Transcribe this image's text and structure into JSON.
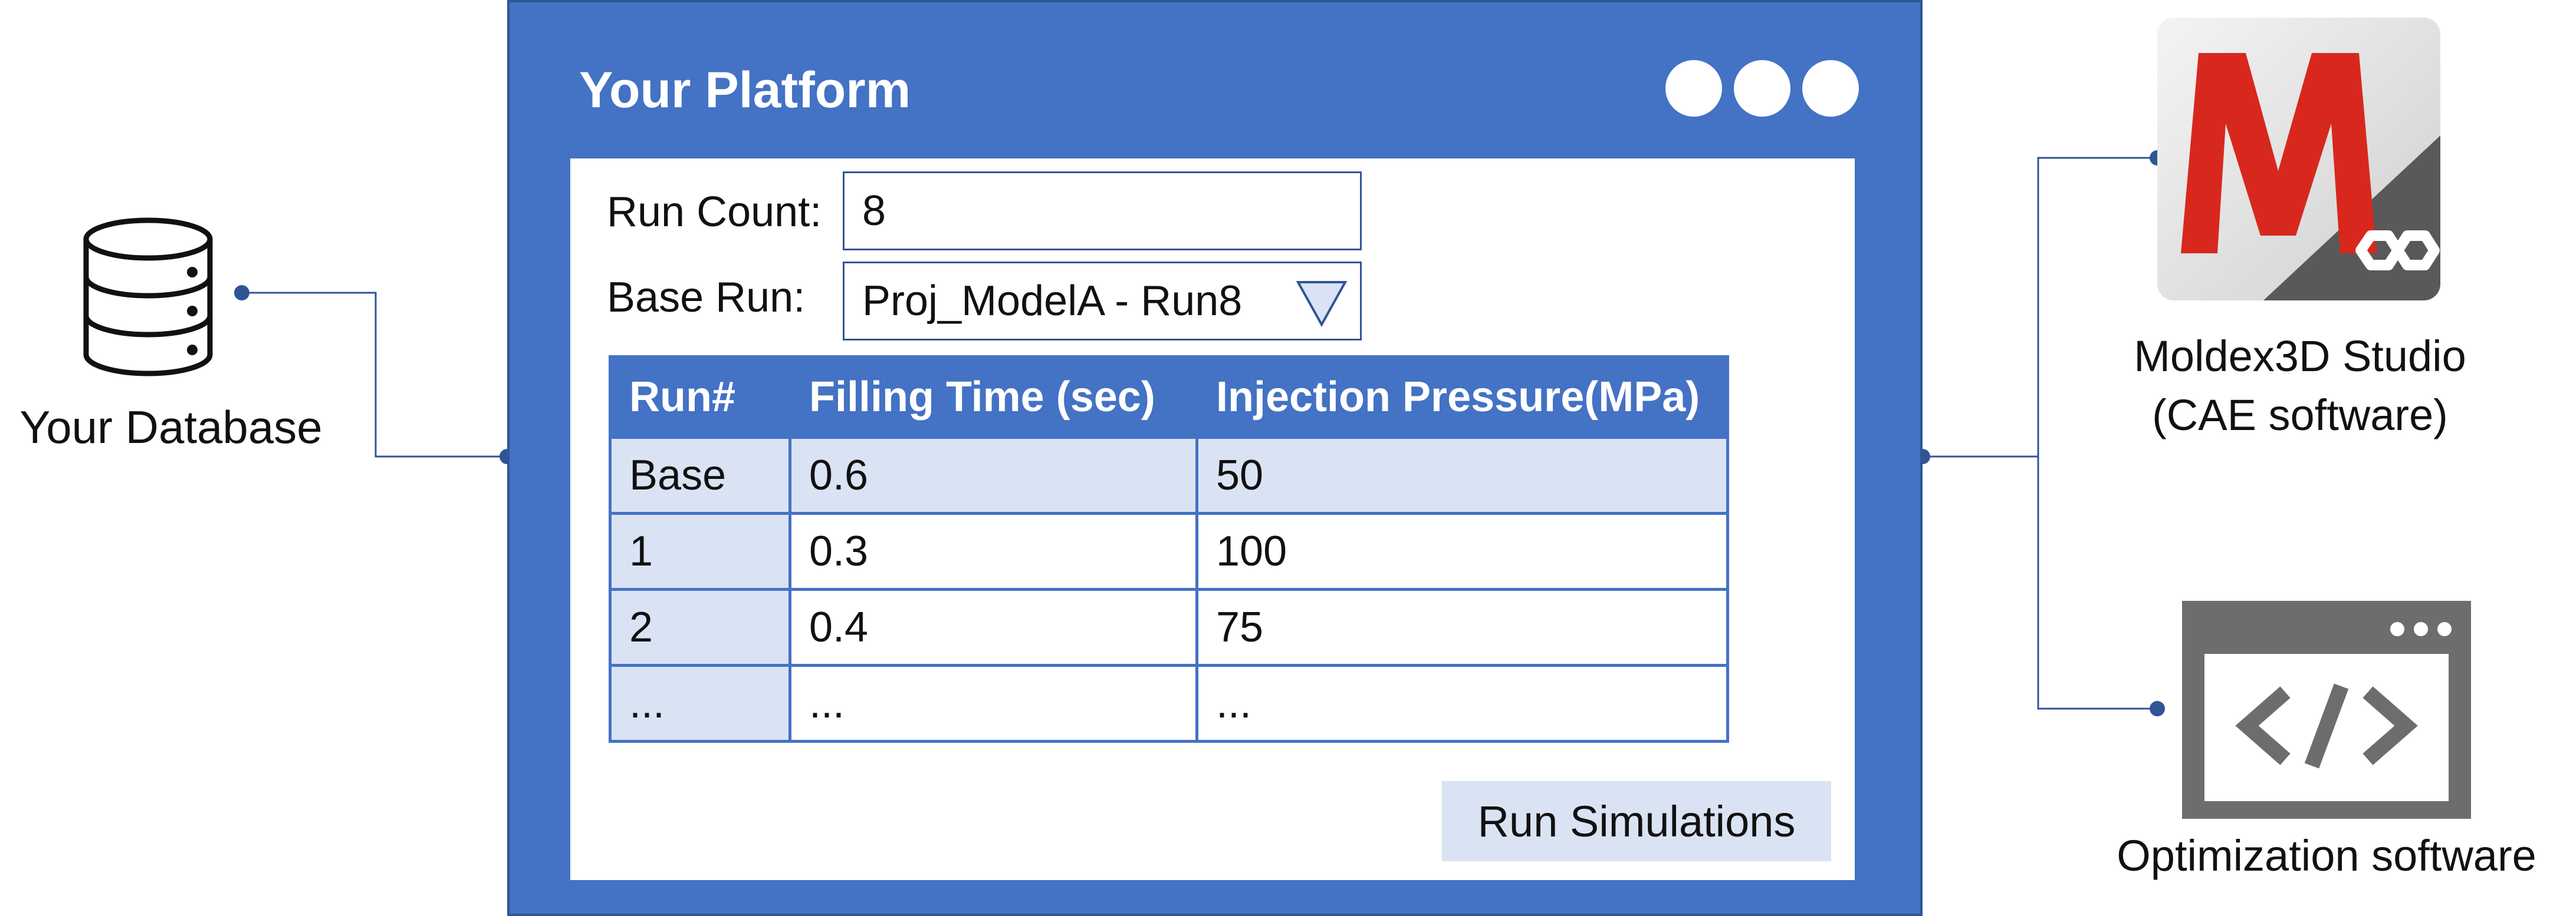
{
  "database": {
    "label": "Your Database",
    "icon": "database-icon"
  },
  "platform": {
    "title": "Your Platform",
    "colors": {
      "frame": "#4472c4",
      "accent_light": "#dae3f3"
    },
    "run_count": {
      "label": "Run Count:",
      "value": "8"
    },
    "base_run": {
      "label": "Base Run:",
      "value": "Proj_ModelA - Run8"
    },
    "table": {
      "headers": [
        "Run#",
        "Filling Time (sec)",
        "Injection Pressure(MPa)"
      ],
      "rows": [
        [
          "Base",
          "0.6",
          "50"
        ],
        [
          "1",
          "0.3",
          "100"
        ],
        [
          "2",
          "0.4",
          "75"
        ],
        [
          "...",
          "...",
          "..."
        ]
      ]
    },
    "run_button": "Run Simulations"
  },
  "moldex": {
    "label_line1": "Moldex3D Studio",
    "label_line2": "(CAE software)",
    "icon": "moldex3d-logo-icon"
  },
  "optimization": {
    "label": "Optimization software",
    "icon": "code-window-icon"
  }
}
